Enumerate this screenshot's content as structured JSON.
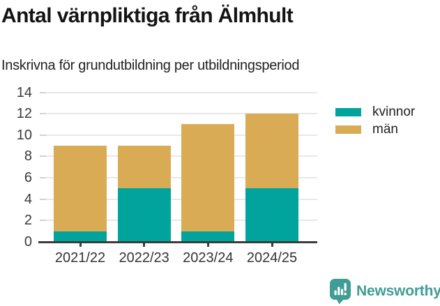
{
  "title": "Antal värnpliktiga från Älmhult",
  "subtitle": "Inskrivna för grundutbildning per utbildningsperiod",
  "chart_data": {
    "type": "bar",
    "stacked": true,
    "title": "Antal värnpliktiga från Älmhult",
    "subtitle": "Inskrivna för grundutbildning per utbildningsperiod",
    "categories": [
      "2021/22",
      "2022/23",
      "2023/24",
      "2024/25"
    ],
    "series": [
      {
        "name": "kvinnor",
        "color": "#00a49c",
        "values": [
          1,
          5,
          1,
          5
        ]
      },
      {
        "name": "män",
        "color": "#d9ab55",
        "values": [
          8,
          4,
          10,
          7
        ]
      }
    ],
    "totals": [
      9,
      9,
      11,
      12
    ],
    "xlabel": "",
    "ylabel": "",
    "ylim": [
      0,
      14
    ],
    "yticks": [
      0,
      2,
      4,
      6,
      8,
      10,
      12,
      14
    ],
    "grid": true,
    "legend_position": "right-top"
  },
  "branding": {
    "logo_text": "Newsworthy",
    "logo_color": "#3f9d95"
  }
}
